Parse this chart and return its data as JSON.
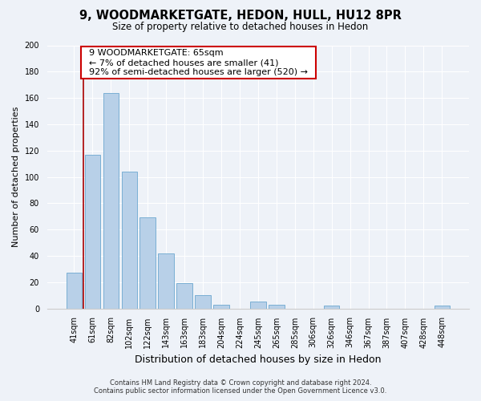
{
  "title": "9, WOODMARKETGATE, HEDON, HULL, HU12 8PR",
  "subtitle": "Size of property relative to detached houses in Hedon",
  "xlabel": "Distribution of detached houses by size in Hedon",
  "ylabel": "Number of detached properties",
  "bar_labels": [
    "41sqm",
    "61sqm",
    "82sqm",
    "102sqm",
    "122sqm",
    "143sqm",
    "163sqm",
    "183sqm",
    "204sqm",
    "224sqm",
    "245sqm",
    "265sqm",
    "285sqm",
    "306sqm",
    "326sqm",
    "346sqm",
    "367sqm",
    "387sqm",
    "407sqm",
    "428sqm",
    "448sqm"
  ],
  "bar_values": [
    27,
    117,
    164,
    104,
    69,
    42,
    19,
    10,
    3,
    0,
    5,
    3,
    0,
    0,
    2,
    0,
    0,
    0,
    0,
    0,
    2
  ],
  "bar_color": "#b8d0e8",
  "bar_edge_color": "#7aafd4",
  "vline_x": 0.5,
  "vline_color": "#aa0000",
  "annotation_title": "9 WOODMARKETGATE: 65sqm",
  "annotation_line1": "← 7% of detached houses are smaller (41)",
  "annotation_line2": "92% of semi-detached houses are larger (520) →",
  "annotation_box_edge": "#cc0000",
  "annotation_box_face": "#ffffff",
  "ylim": [
    0,
    200
  ],
  "yticks": [
    0,
    20,
    40,
    60,
    80,
    100,
    120,
    140,
    160,
    180,
    200
  ],
  "footer_line1": "Contains HM Land Registry data © Crown copyright and database right 2024.",
  "footer_line2": "Contains public sector information licensed under the Open Government Licence v3.0.",
  "bg_color": "#eef2f8",
  "plot_bg_color": "#eef2f8",
  "grid_color": "#ffffff",
  "title_fontsize": 10.5,
  "subtitle_fontsize": 8.5,
  "xlabel_fontsize": 9,
  "ylabel_fontsize": 8,
  "tick_fontsize": 7,
  "ann_fontsize": 8,
  "footer_fontsize": 6
}
